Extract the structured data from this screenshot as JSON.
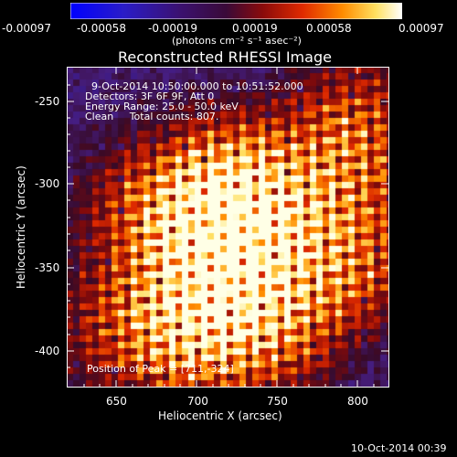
{
  "colorbar": {
    "ticks": [
      "-0.00097",
      "-0.00058",
      "-0.00019",
      "0.00019",
      "0.00058",
      "0.00097"
    ],
    "unit_label": "(photons cm⁻² s⁻¹ asec⁻²)"
  },
  "plot": {
    "title": "Reconstructed RHESSI Image",
    "info_lines": [
      "9-Oct-2014 10:50:00.000 to 10:51:52.000",
      "Detectors: 3F 6F 9F, Att 0",
      "Energy Range: 25.0 - 50.0 keV",
      "Clean     Total counts: 807."
    ],
    "peak_label": "Position of Peak = [711,-324]",
    "xlabel": "Heliocentric X (arcsec)",
    "ylabel": "Heliocentric Y (arcsec)",
    "x_ticks": [
      "650",
      "700",
      "750",
      "800"
    ],
    "y_ticks": [
      "-250",
      "-300",
      "-350",
      "-400"
    ]
  },
  "footer": {
    "timestamp": "10-Oct-2014 00:39"
  }
}
